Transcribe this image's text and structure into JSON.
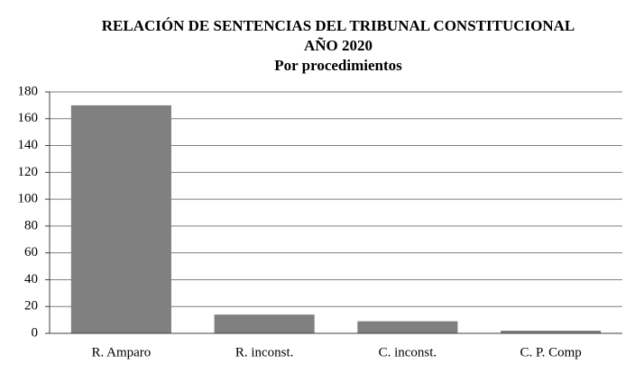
{
  "chart_data": {
    "type": "bar",
    "title": [
      "RELACIÓN DE SENTENCIAS DEL TRIBUNAL CONSTITUCIONAL",
      "AÑO 2020",
      "Por procedimientos"
    ],
    "categories": [
      "R. Amparo",
      "R. inconst.",
      "C. inconst.",
      "C. P. Comp"
    ],
    "values": [
      170,
      14,
      9,
      2
    ],
    "color": "#808080",
    "ylim": [
      0,
      180
    ],
    "yticks": [
      0,
      20,
      40,
      60,
      80,
      100,
      120,
      140,
      160,
      180
    ],
    "grid": true
  }
}
